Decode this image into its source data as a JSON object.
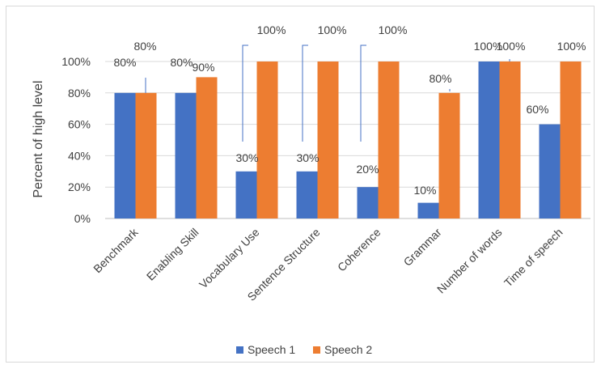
{
  "chart_data": {
    "type": "bar",
    "title": "",
    "xlabel": "",
    "ylabel": "Percent of high level",
    "ylim": [
      0,
      100
    ],
    "yticks": [
      "0%",
      "20%",
      "40%",
      "60%",
      "80%",
      "100%"
    ],
    "grid": true,
    "legend_position": "bottom",
    "categories": [
      "Benchmark",
      "Enabling Skill",
      "Vocabulary Use",
      "Sentence Structure",
      "Coherence",
      "Grammar",
      "Number of words",
      "Time of speech"
    ],
    "series": [
      {
        "name": "Speech 1",
        "color": "#4472C4",
        "values": [
          80,
          80,
          30,
          30,
          20,
          10,
          100,
          60
        ],
        "labels": [
          "80%",
          "80%",
          "30%",
          "30%",
          "20%",
          "10%",
          "100%",
          "60%"
        ]
      },
      {
        "name": "Speech 2",
        "color": "#ED7D31",
        "values": [
          80,
          90,
          100,
          100,
          100,
          80,
          100,
          100
        ],
        "labels": [
          "80%",
          "90%",
          "100%",
          "100%",
          "100%",
          "80%",
          "100%",
          "100%"
        ]
      }
    ]
  }
}
